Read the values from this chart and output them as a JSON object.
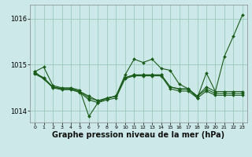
{
  "background_color": "#cce8e8",
  "grid_color": "#99ccbb",
  "line_color": "#1a5c1a",
  "marker_color": "#1a5c1a",
  "xlabel": "Graphe pression niveau de la mer (hPa)",
  "xlabel_fontsize": 7,
  "xlim": [
    -0.5,
    23.5
  ],
  "ylim": [
    1013.75,
    1016.3
  ],
  "yticks": [
    1014,
    1015,
    1016
  ],
  "xticks": [
    0,
    1,
    2,
    3,
    4,
    5,
    6,
    7,
    8,
    9,
    10,
    11,
    12,
    13,
    14,
    15,
    16,
    17,
    18,
    19,
    20,
    21,
    22,
    23
  ],
  "series": [
    {
      "x": [
        0,
        1,
        2,
        3,
        4,
        5,
        6,
        7,
        8,
        9,
        10,
        11,
        12,
        13,
        14,
        15,
        16,
        17,
        18,
        19,
        20,
        21,
        22,
        23
      ],
      "y": [
        1014.85,
        1014.95,
        1014.55,
        1014.5,
        1014.5,
        1014.45,
        1013.88,
        1014.18,
        1014.28,
        1014.32,
        1014.78,
        1015.12,
        1015.05,
        1015.12,
        1014.92,
        1014.88,
        1014.58,
        1014.48,
        1014.28,
        1014.82,
        1014.42,
        1015.18,
        1015.62,
        1016.08
      ]
    },
    {
      "x": [
        0,
        2,
        3,
        4,
        5,
        6,
        7,
        8,
        9,
        10,
        11,
        12,
        13,
        14,
        15,
        16,
        17,
        18,
        19,
        20,
        21,
        22,
        23
      ],
      "y": [
        1014.85,
        1014.52,
        1014.48,
        1014.48,
        1014.42,
        1014.32,
        1014.22,
        1014.28,
        1014.32,
        1014.72,
        1014.78,
        1014.78,
        1014.78,
        1014.78,
        1014.52,
        1014.48,
        1014.48,
        1014.32,
        1014.52,
        1014.42,
        1014.42,
        1014.42,
        1014.42
      ]
    },
    {
      "x": [
        0,
        1,
        2,
        3,
        4,
        5,
        6,
        7,
        8,
        9,
        10,
        11,
        12,
        13,
        14,
        15,
        16,
        17,
        18,
        19,
        20,
        21,
        22,
        23
      ],
      "y": [
        1014.82,
        1014.72,
        1014.52,
        1014.48,
        1014.48,
        1014.42,
        1014.28,
        1014.22,
        1014.27,
        1014.32,
        1014.72,
        1014.78,
        1014.78,
        1014.78,
        1014.78,
        1014.52,
        1014.47,
        1014.47,
        1014.32,
        1014.47,
        1014.38,
        1014.38,
        1014.38,
        1014.38
      ]
    },
    {
      "x": [
        0,
        1,
        2,
        3,
        4,
        5,
        6,
        7,
        8,
        9,
        10,
        11,
        12,
        13,
        14,
        15,
        16,
        17,
        18,
        19,
        20,
        21,
        22,
        23
      ],
      "y": [
        1014.8,
        1014.7,
        1014.5,
        1014.46,
        1014.46,
        1014.4,
        1014.24,
        1014.18,
        1014.24,
        1014.28,
        1014.7,
        1014.76,
        1014.76,
        1014.76,
        1014.76,
        1014.48,
        1014.43,
        1014.43,
        1014.28,
        1014.43,
        1014.34,
        1014.34,
        1014.34,
        1014.34
      ]
    }
  ]
}
